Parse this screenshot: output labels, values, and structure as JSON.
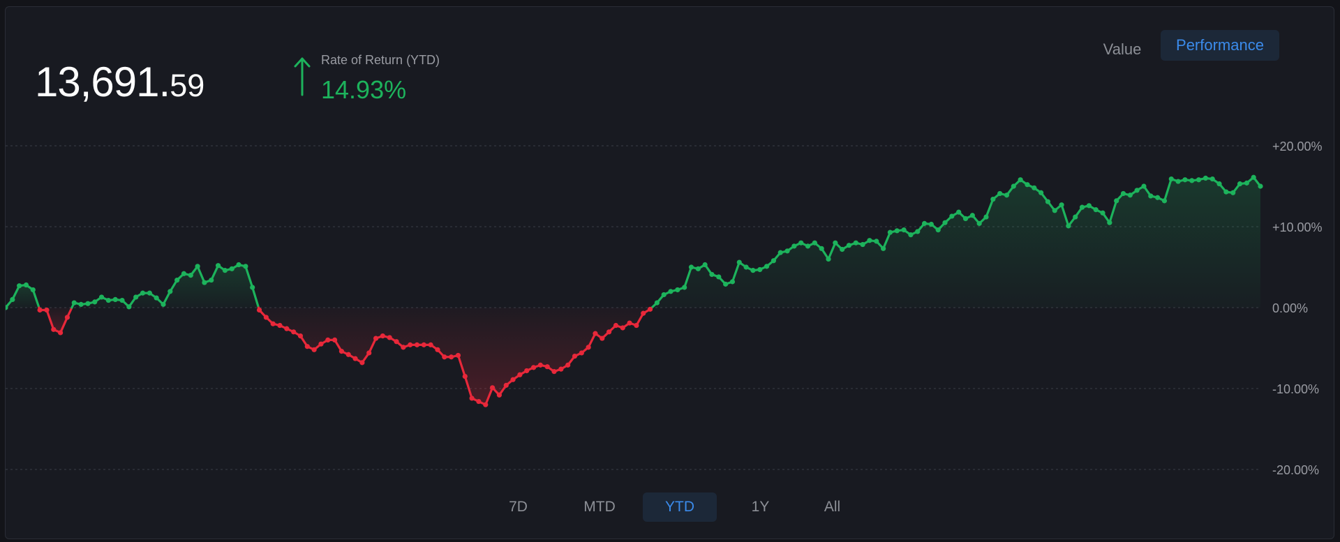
{
  "header": {
    "value_integer": "13,691.",
    "value_decimal": "59",
    "ror_label": "Rate of Return (YTD)",
    "ror_value": "14.93%",
    "ror_direction_icon": "arrow-up-icon"
  },
  "view_toggle": {
    "options": [
      "Value",
      "Performance"
    ],
    "selected": "Performance"
  },
  "range_tabs": {
    "options": [
      "7D",
      "MTD",
      "YTD",
      "1Y",
      "All"
    ],
    "selected": "YTD"
  },
  "colors": {
    "positive": "#1db35c",
    "negative": "#e8283a",
    "accent": "#3b8beb",
    "grid": "#3a3d47",
    "axis_text": "#9a9ca3"
  },
  "chart_data": {
    "type": "line",
    "y_unit": "%",
    "ylim": [
      -20,
      20
    ],
    "y_ticks": [
      20,
      10,
      0,
      -10,
      -20
    ],
    "y_tick_labels": [
      "+20.00%",
      "+10.00%",
      "0.00%",
      "-10.00%",
      "-20.00%"
    ],
    "grid": true,
    "series": [
      {
        "values": [
          0,
          1.0,
          2.7,
          2.8,
          2.2,
          -0.3,
          -0.3,
          -2.7,
          -3.1,
          -1.2,
          0.6,
          0.4,
          0.5,
          0.7,
          1.3,
          0.9,
          1.0,
          0.9,
          0.1,
          1.3,
          1.8,
          1.8,
          1.2,
          0.4,
          2.0,
          3.4,
          4.2,
          4.0,
          5.1,
          3.1,
          3.4,
          5.2,
          4.6,
          4.8,
          5.3,
          5.1,
          2.5,
          -0.3,
          -1.2,
          -2.0,
          -2.2,
          -2.6,
          -3.0,
          -3.5,
          -4.8,
          -5.2,
          -4.5,
          -4.0,
          -4.0,
          -5.4,
          -5.8,
          -6.3,
          -6.8,
          -5.6,
          -3.8,
          -3.5,
          -3.7,
          -4.2,
          -4.9,
          -4.6,
          -4.6,
          -4.6,
          -4.6,
          -5.2,
          -6.1,
          -6.1,
          -5.9,
          -8.5,
          -11.2,
          -11.6,
          -12.0,
          -9.9,
          -10.8,
          -9.6,
          -8.9,
          -8.3,
          -7.8,
          -7.4,
          -7.1,
          -7.3,
          -7.9,
          -7.6,
          -7.1,
          -6.0,
          -5.6,
          -4.9,
          -3.2,
          -3.8,
          -3.0,
          -2.2,
          -2.5,
          -1.9,
          -2.2,
          -0.7,
          -0.2,
          0.6,
          1.6,
          2.0,
          2.2,
          2.5,
          5.0,
          4.8,
          5.3,
          4.1,
          3.8,
          2.9,
          3.2,
          5.6,
          5.0,
          4.6,
          4.7,
          5.1,
          5.8,
          6.8,
          7.0,
          7.6,
          8.0,
          7.6,
          8.0,
          7.3,
          6.0,
          8.0,
          7.2,
          7.7,
          8.0,
          7.8,
          8.3,
          8.2,
          7.3,
          9.3,
          9.5,
          9.6,
          9.0,
          9.4,
          10.4,
          10.3,
          9.6,
          10.5,
          11.3,
          11.8,
          11.0,
          11.4,
          10.4,
          11.2,
          13.4,
          14.1,
          13.9,
          15.0,
          15.8,
          15.2,
          14.8,
          14.2,
          13.1,
          12.0,
          12.7,
          10.1,
          11.2,
          12.4,
          12.6,
          12.1,
          11.7,
          10.5,
          13.2,
          14.1,
          13.9,
          14.5,
          15.0,
          13.8,
          13.6,
          13.2,
          15.9,
          15.6,
          15.8,
          15.7,
          15.8,
          16.0,
          15.9,
          15.3,
          14.3,
          14.2,
          15.3,
          15.4,
          16.1,
          15.0
        ]
      }
    ]
  }
}
